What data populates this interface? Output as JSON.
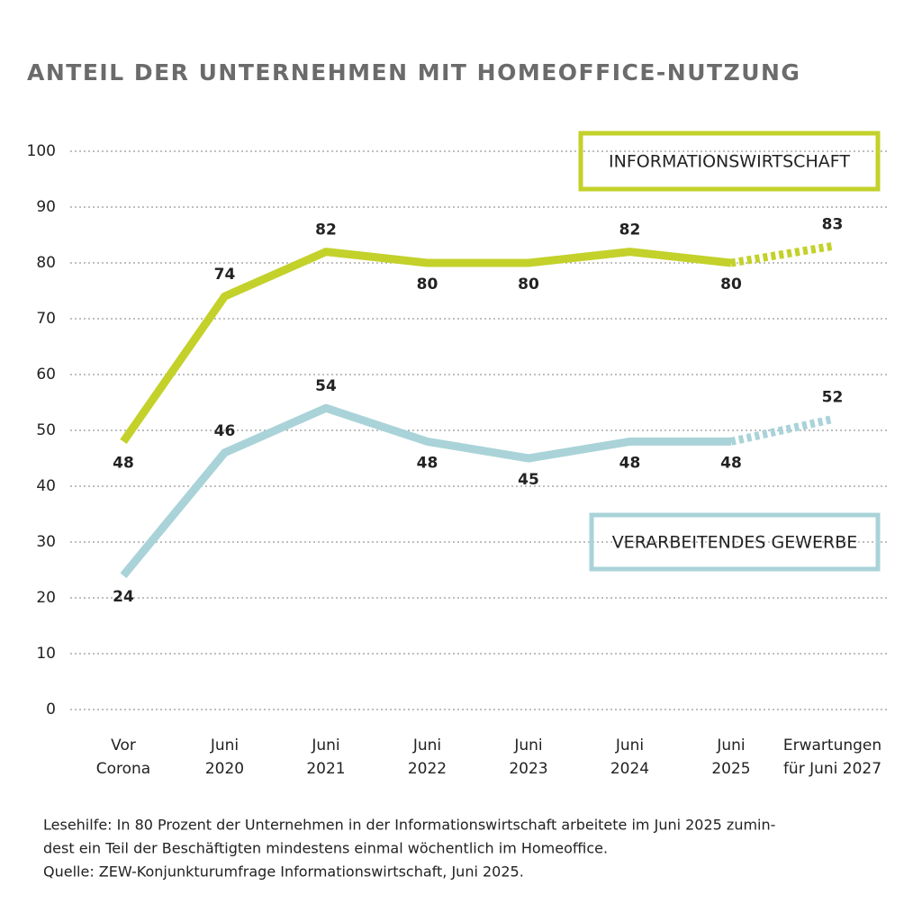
{
  "chart_data": {
    "type": "line",
    "title": "ANTEIL DER UNTERNEHMEN MIT HOMEOFFICE-NUTZUNG",
    "categories": [
      [
        "Vor",
        "Corona"
      ],
      [
        "Juni",
        "2020"
      ],
      [
        "Juni",
        "2021"
      ],
      [
        "Juni",
        "2022"
      ],
      [
        "Juni",
        "2023"
      ],
      [
        "Juni",
        "2024"
      ],
      [
        "Juni",
        "2025"
      ],
      [
        "Erwartungen",
        "für Juni 2027"
      ]
    ],
    "series": [
      {
        "name": "INFORMATIONSWIRTSCHAFT",
        "color": "#c3d12a",
        "values": [
          48,
          74,
          82,
          80,
          80,
          82,
          80,
          83
        ]
      },
      {
        "name": "VERARBEITENDES GEWERBE",
        "color": "#a9d3d8",
        "values": [
          24,
          46,
          54,
          48,
          45,
          48,
          48,
          52
        ]
      }
    ],
    "ylim": [
      0,
      100
    ],
    "yticks": [
      0,
      10,
      20,
      30,
      40,
      50,
      60,
      70,
      80,
      90,
      100
    ],
    "grid": true,
    "notes": [
      "Lesehilfe: In 80 Prozent der Unternehmen in der Informationswirtschaft arbeitete im Juni 2025 zumin-",
      "dest ein Teil der Beschäftigten mindestens einmal wöchentlich im Homeoffice.",
      "Quelle: ZEW-Konjunkturumfrage Informationswirtschaft, Juni 2025."
    ]
  }
}
